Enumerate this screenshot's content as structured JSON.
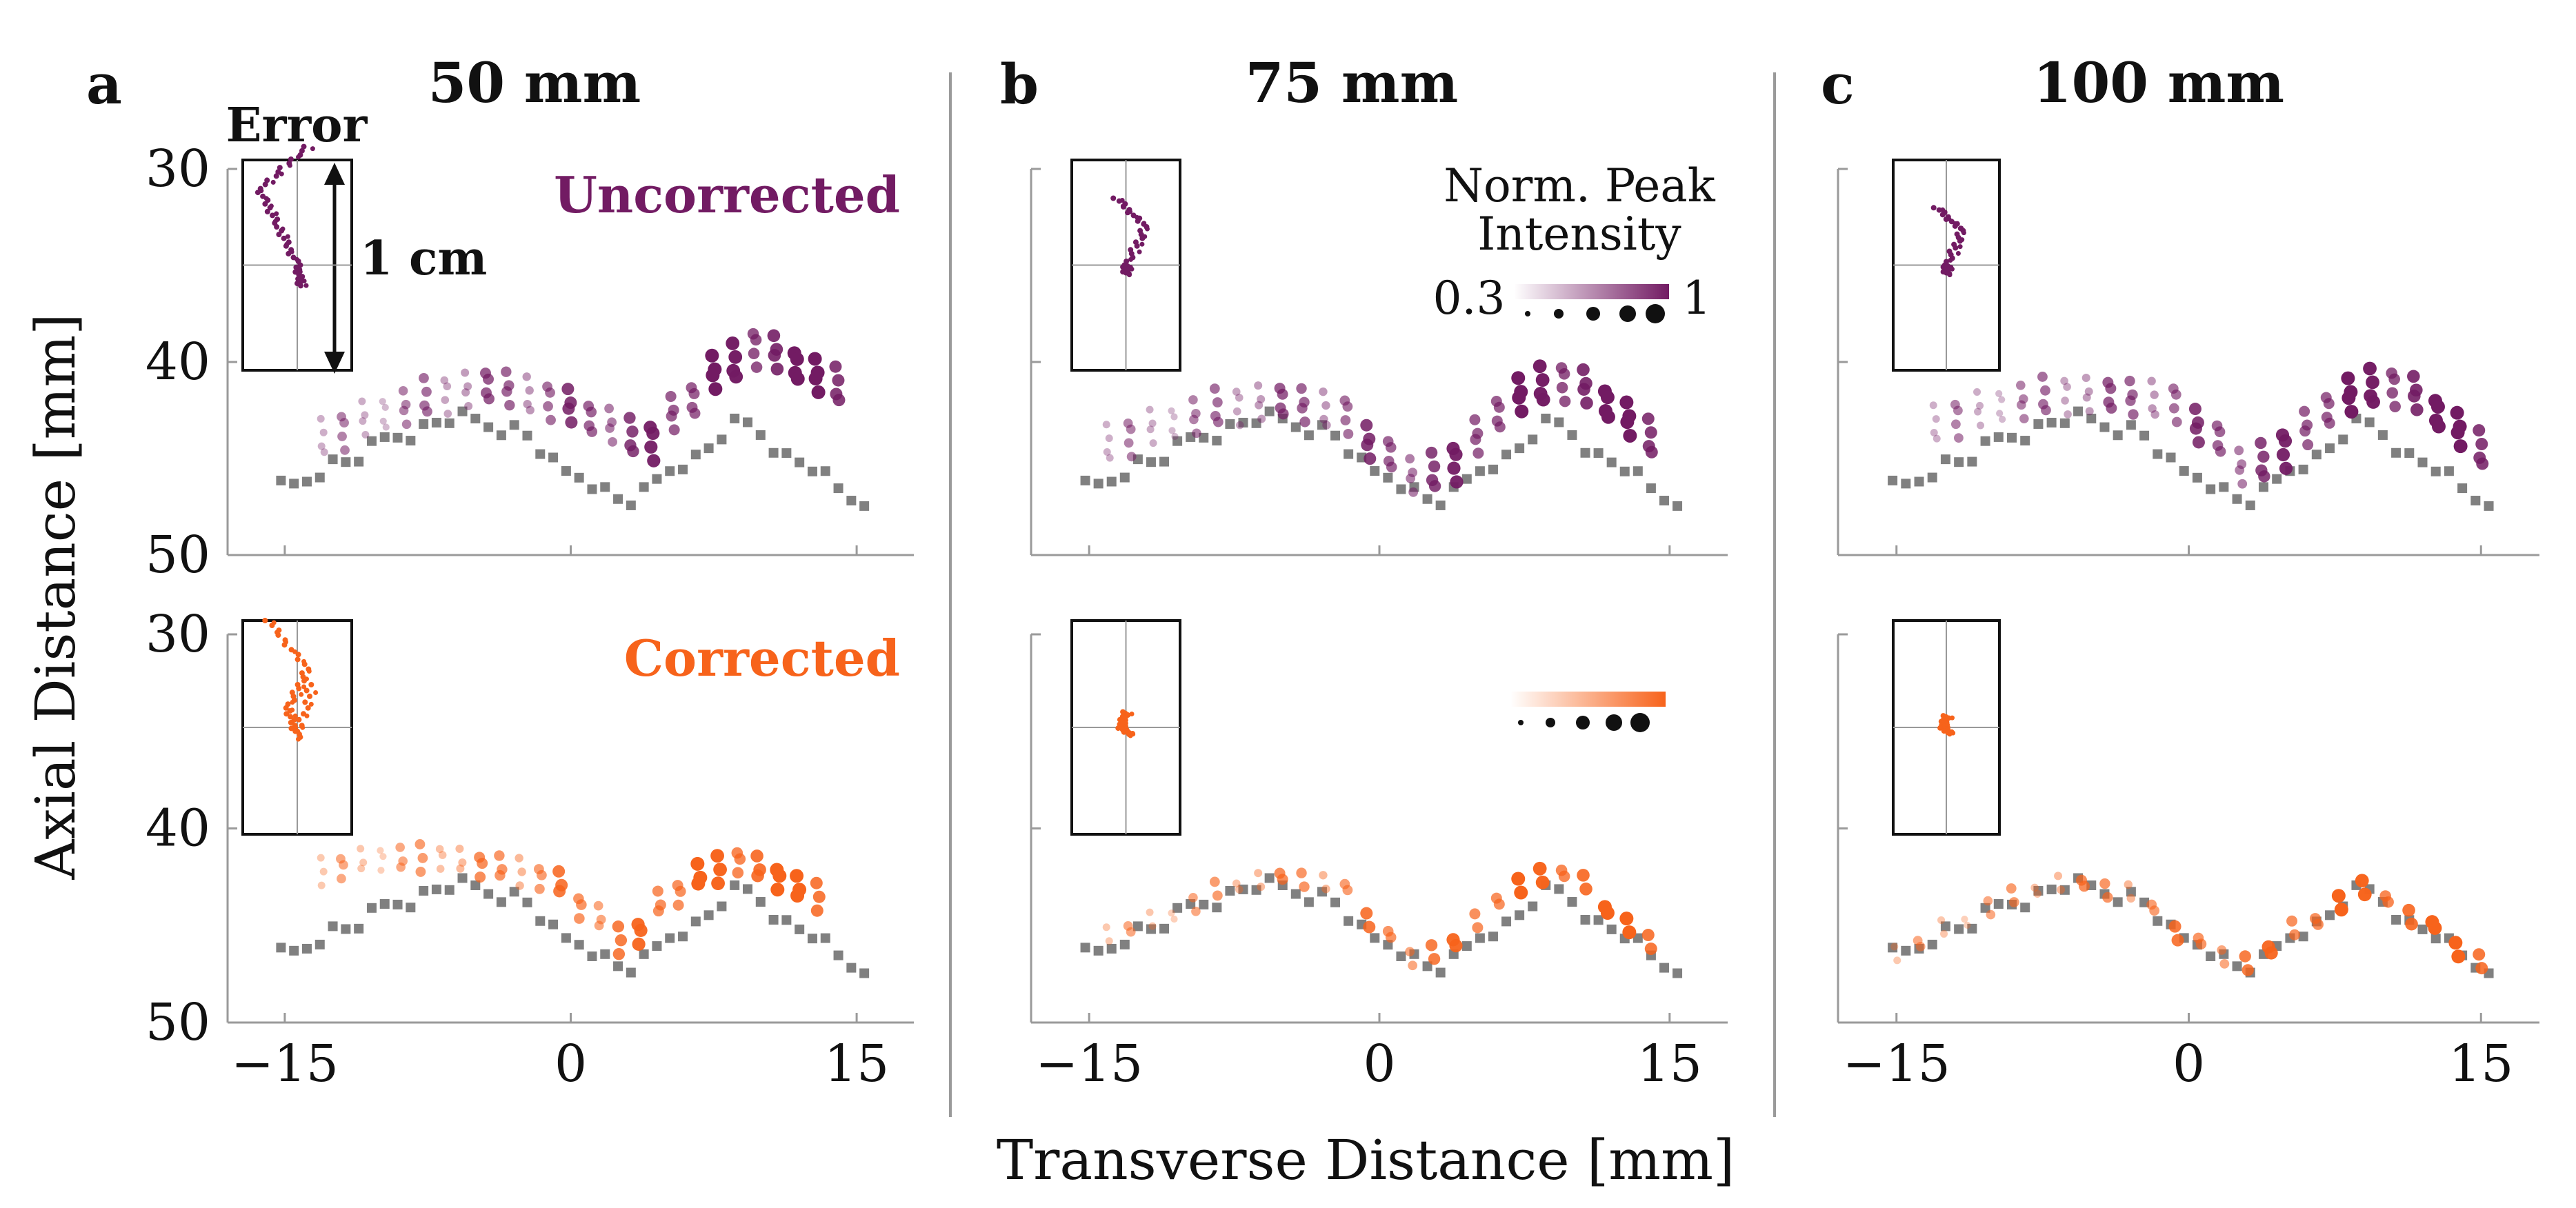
{
  "figure": {
    "x_label": "Transverse Distance [mm]",
    "y_label": "Axial Distance [mm]",
    "x_ticks": [
      "−15",
      "0",
      "15"
    ],
    "y_ticks": [
      "30",
      "40",
      "50"
    ],
    "colors": {
      "uncorrected": "#721b63",
      "corrected": "#f7631b",
      "ground_truth": "#808080",
      "axes": "#9a9a9a",
      "text": "#111111"
    }
  },
  "panels": [
    {
      "letter": "a",
      "title": "50 mm"
    },
    {
      "letter": "b",
      "title": "75 mm"
    },
    {
      "letter": "c",
      "title": "100 mm"
    }
  ],
  "annotations": {
    "error_title": "Error",
    "error_scale": "1 cm",
    "uncorrected_label": "Uncorrected",
    "corrected_label": "Corrected"
  },
  "legend": {
    "title_line1": "Norm. Peak",
    "title_line2": "Intensity",
    "min_label": "0.3",
    "max_label": "1"
  },
  "chart_data": [
    {
      "type": "scatter",
      "panel": "a",
      "depth_label": "50 mm",
      "row": "uncorrected",
      "xlabel": "Transverse Distance [mm]",
      "ylabel": "Axial Distance [mm]",
      "xlim": [
        -18,
        18
      ],
      "ylim": [
        50,
        30
      ],
      "x_ticks": [
        -15,
        0,
        15
      ],
      "y_ticks": [
        30,
        40,
        50
      ],
      "true_curve": {
        "x": [
          -15,
          -12,
          -9,
          -6,
          -3,
          0,
          3,
          6,
          9,
          12,
          15
        ],
        "y": [
          46.5,
          45.2,
          43.8,
          42.9,
          43.5,
          45.8,
          47.2,
          45.2,
          43.2,
          45.2,
          47.1
        ]
      },
      "estimated_curve": {
        "x": [
          -13,
          -10,
          -7,
          -4,
          -1,
          2,
          4,
          6,
          8,
          10,
          12,
          14
        ],
        "y": [
          44.2,
          43.0,
          42.0,
          41.5,
          42.3,
          43.5,
          44.5,
          42.5,
          40.5,
          39.5,
          40.5,
          41.5
        ]
      },
      "error_inset": {
        "scale_cm": 1,
        "dx": [
          0.05,
          -0.2,
          -0.1,
          0.0,
          0.02
        ],
        "dy": [
          -0.62,
          -0.4,
          -0.2,
          0.0,
          0.12
        ]
      }
    },
    {
      "type": "scatter",
      "panel": "a",
      "depth_label": "50 mm",
      "row": "corrected",
      "xlabel": "Transverse Distance [mm]",
      "ylabel": "Axial Distance [mm]",
      "xlim": [
        -18,
        18
      ],
      "ylim": [
        50,
        30
      ],
      "x_ticks": [
        -15,
        0,
        15
      ],
      "y_ticks": [
        30,
        40,
        50
      ],
      "true_curve": {
        "x": [
          -15,
          -12,
          -9,
          -6,
          -3,
          0,
          3,
          6,
          9,
          12,
          15
        ],
        "y": [
          46.5,
          45.2,
          43.8,
          42.9,
          43.5,
          45.8,
          47.2,
          45.2,
          43.2,
          45.2,
          47.1
        ]
      },
      "estimated_curve": {
        "x": [
          -13,
          -10,
          -7,
          -4,
          -1,
          1,
          3,
          5,
          7,
          9,
          11,
          13
        ],
        "y": [
          42.5,
          41.8,
          41.8,
          42.2,
          42.9,
          44.5,
          46.2,
          44.0,
          42.6,
          42.0,
          42.8,
          43.8
        ]
      },
      "error_inset": {
        "scale_cm": 1,
        "dx": [
          -0.15,
          0.05,
          -0.05,
          0.0,
          0.08
        ],
        "dy": [
          -0.55,
          -0.3,
          -0.1,
          0.05,
          -0.25
        ]
      }
    },
    {
      "type": "scatter",
      "panel": "b",
      "depth_label": "75 mm",
      "row": "uncorrected",
      "xlabel": "Transverse Distance [mm]",
      "ylabel": "Axial Distance [mm]",
      "xlim": [
        -18,
        18
      ],
      "ylim": [
        50,
        30
      ],
      "x_ticks": [
        -15,
        0,
        15
      ],
      "y_ticks": [
        30,
        40,
        50
      ],
      "true_curve": {
        "x": [
          -15,
          -12,
          -9,
          -6,
          -3,
          0,
          3,
          6,
          9,
          12,
          15
        ],
        "y": [
          46.5,
          45.2,
          43.8,
          42.9,
          43.5,
          45.8,
          47.2,
          45.2,
          43.2,
          45.2,
          47.1
        ]
      },
      "estimated_curve": {
        "x": [
          -14,
          -11,
          -8,
          -5,
          -2,
          0,
          2,
          4,
          6,
          8,
          10,
          12,
          14
        ],
        "y": [
          44.5,
          43.5,
          42.6,
          42.3,
          42.9,
          44.8,
          46.2,
          45.5,
          43.0,
          41.5,
          41.3,
          42.5,
          44.2
        ]
      },
      "error_inset": {
        "scale_cm": 1,
        "dx": [
          -0.05,
          0.1,
          0.0,
          0.0
        ],
        "dy": [
          -0.35,
          -0.2,
          0.0,
          0.05
        ]
      }
    },
    {
      "type": "scatter",
      "panel": "b",
      "depth_label": "75 mm",
      "row": "corrected",
      "xlabel": "Transverse Distance [mm]",
      "ylabel": "Axial Distance [mm]",
      "xlim": [
        -18,
        18
      ],
      "ylim": [
        50,
        30
      ],
      "x_ticks": [
        -15,
        0,
        15
      ],
      "y_ticks": [
        30,
        40,
        50
      ],
      "true_curve": {
        "x": [
          -15,
          -12,
          -9,
          -6,
          -3,
          0,
          3,
          6,
          9,
          12,
          15
        ],
        "y": [
          46.5,
          45.2,
          43.8,
          42.9,
          43.5,
          45.8,
          47.2,
          45.2,
          43.2,
          45.2,
          47.1
        ]
      },
      "estimated_curve": {
        "x": [
          -14,
          -11,
          -8,
          -5,
          -2,
          0,
          2,
          4,
          6,
          8,
          10,
          12,
          14
        ],
        "y": [
          45.8,
          44.8,
          43.4,
          42.7,
          43.2,
          45.4,
          47.0,
          46.2,
          44.0,
          42.8,
          42.6,
          44.5,
          46.2
        ]
      },
      "error_inset": {
        "scale_cm": 1,
        "dx": [
          0.0,
          -0.03,
          0.03
        ],
        "dy": [
          -0.08,
          0.0,
          0.04
        ]
      }
    },
    {
      "type": "scatter",
      "panel": "c",
      "depth_label": "100 mm",
      "row": "uncorrected",
      "xlabel": "Transverse Distance [mm]",
      "ylabel": "Axial Distance [mm]",
      "xlim": [
        -18,
        18
      ],
      "ylim": [
        50,
        30
      ],
      "x_ticks": [
        -15,
        0,
        15
      ],
      "y_ticks": [
        30,
        40,
        50
      ],
      "true_curve": {
        "x": [
          -15,
          -12,
          -9,
          -6,
          -3,
          0,
          3,
          6,
          9,
          12,
          15
        ],
        "y": [
          46.5,
          45.2,
          43.8,
          42.9,
          43.5,
          45.8,
          47.2,
          45.2,
          43.2,
          45.2,
          47.1
        ]
      },
      "estimated_curve": {
        "x": [
          -13,
          -10,
          -7,
          -4,
          -1,
          1,
          3,
          5,
          7,
          9,
          11,
          13,
          15
        ],
        "y": [
          43.5,
          42.6,
          42.0,
          42.0,
          42.3,
          43.9,
          45.8,
          44.8,
          42.8,
          41.6,
          41.6,
          43.0,
          44.8
        ]
      },
      "error_inset": {
        "scale_cm": 1,
        "dx": [
          -0.05,
          0.08,
          0.0,
          0.0
        ],
        "dy": [
          -0.3,
          -0.18,
          0.0,
          0.05
        ]
      }
    },
    {
      "type": "scatter",
      "panel": "c",
      "depth_label": "100 mm",
      "row": "corrected",
      "xlabel": "Transverse Distance [mm]",
      "ylabel": "Axial Distance [mm]",
      "xlim": [
        -18,
        18
      ],
      "ylim": [
        50,
        30
      ],
      "x_ticks": [
        -15,
        0,
        15
      ],
      "y_ticks": [
        30,
        40,
        50
      ],
      "true_curve": {
        "x": [
          -15,
          -12,
          -9,
          -6,
          -3,
          0,
          3,
          6,
          9,
          12,
          15
        ],
        "y": [
          46.5,
          45.2,
          43.8,
          42.9,
          43.5,
          45.8,
          47.2,
          45.2,
          43.2,
          45.2,
          47.1
        ]
      },
      "estimated_curve": {
        "x": [
          -15,
          -12,
          -9,
          -6,
          -3,
          0,
          3,
          6,
          9,
          12,
          15
        ],
        "y": [
          46.8,
          45.2,
          43.8,
          43.0,
          43.6,
          45.9,
          47.3,
          45.2,
          43.4,
          45.0,
          47.2
        ]
      },
      "error_inset": {
        "scale_cm": 1,
        "dx": [
          0.0,
          -0.02,
          0.02
        ],
        "dy": [
          -0.06,
          0.0,
          0.03
        ]
      }
    }
  ]
}
